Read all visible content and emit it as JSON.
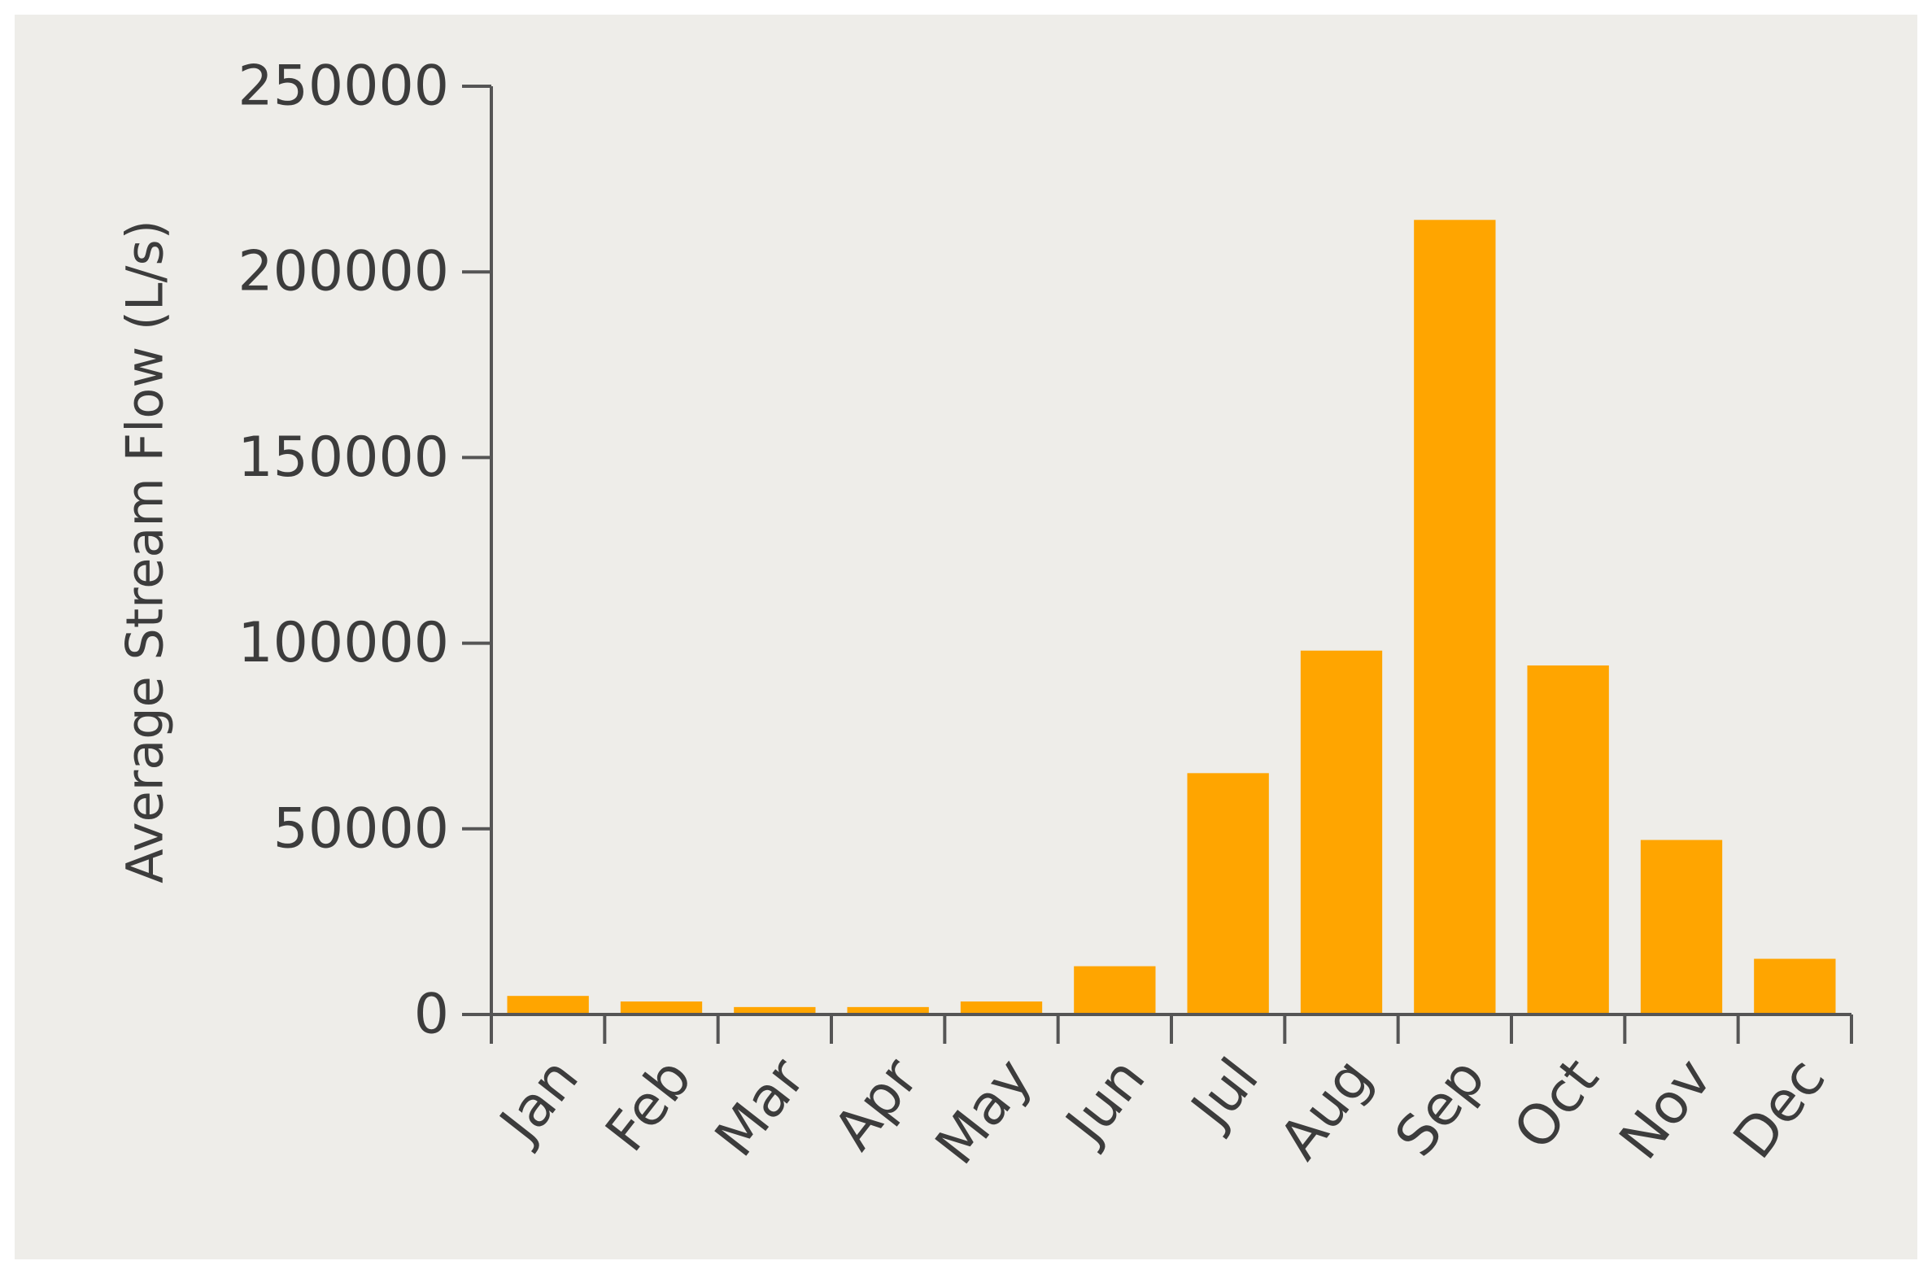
{
  "colors": {
    "background": "#eeede9",
    "bar": "#ffa500",
    "axis": "#555555",
    "text": "#3c3c3c"
  },
  "chart_data": {
    "type": "bar",
    "title": "",
    "xlabel": "",
    "ylabel": "Average Stream Flow (L/s)",
    "categories": [
      "Jan",
      "Feb",
      "Mar",
      "Apr",
      "May",
      "Jun",
      "Jul",
      "Aug",
      "Sep",
      "Oct",
      "Nov",
      "Dec"
    ],
    "values": [
      5000,
      3500,
      2000,
      2000,
      3500,
      13000,
      65000,
      98000,
      214000,
      94000,
      47000,
      15000
    ],
    "ylim": [
      0,
      250000
    ],
    "yticks": [
      "0",
      "50000",
      "100000",
      "150000",
      "200000",
      "250000"
    ],
    "grid": false,
    "legend": "none"
  }
}
